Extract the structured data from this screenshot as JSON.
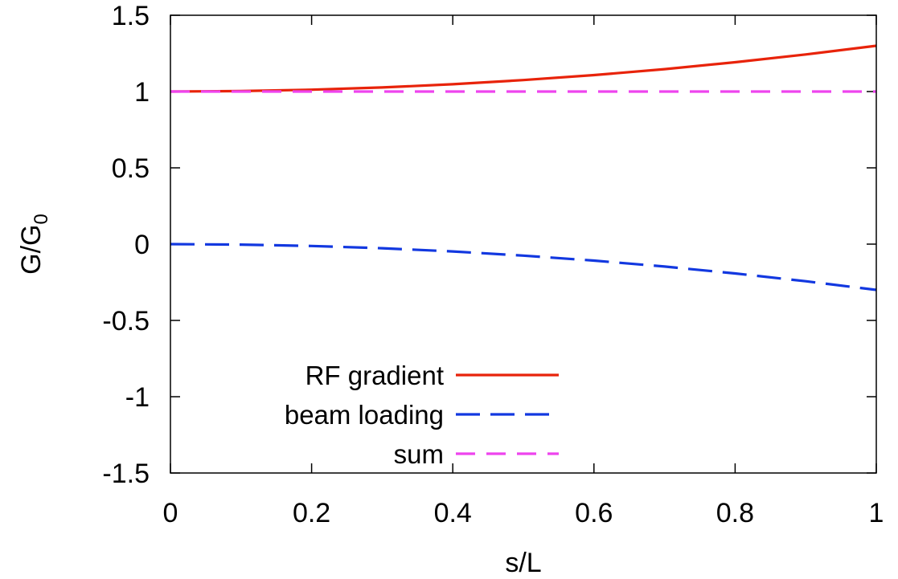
{
  "chart_data": {
    "type": "line",
    "title": "",
    "xlabel": "s/L",
    "ylabel": {
      "base": "G/G",
      "subscript": "0"
    },
    "xlim": [
      0,
      1
    ],
    "ylim": [
      -1.5,
      1.5
    ],
    "xticks": [
      0,
      0.2,
      0.4,
      0.6,
      0.8,
      1
    ],
    "xtick_labels": [
      "0",
      "0.2",
      "0.4",
      "0.6",
      "0.8",
      "1"
    ],
    "yticks": [
      -1.5,
      -1,
      -0.5,
      0,
      0.5,
      1,
      1.5
    ],
    "ytick_labels": [
      "-1.5",
      "-1",
      "-0.5",
      "0",
      "0.5",
      "1",
      "1.5"
    ],
    "grid": false,
    "legend_position": "bottom-left",
    "x": [
      0,
      0.1,
      0.2,
      0.3,
      0.4,
      0.5,
      0.6,
      0.7,
      0.8,
      0.9,
      1.0
    ],
    "series": [
      {
        "name": "RF gradient",
        "color": "#e8230a",
        "style": "solid",
        "values": [
          1.0,
          1.003,
          1.012,
          1.027,
          1.048,
          1.075,
          1.108,
          1.147,
          1.192,
          1.243,
          1.3
        ]
      },
      {
        "name": "beam loading",
        "color": "#1238e0",
        "style": "dashed",
        "values": [
          0.0,
          -0.003,
          -0.012,
          -0.027,
          -0.048,
          -0.075,
          -0.108,
          -0.147,
          -0.192,
          -0.243,
          -0.3
        ]
      },
      {
        "name": "sum",
        "color": "#ee44ee",
        "style": "dashed",
        "values": [
          1.0,
          1.0,
          1.0,
          1.0,
          1.0,
          1.0,
          1.0,
          1.0,
          1.0,
          1.0,
          1.0
        ]
      }
    ]
  }
}
